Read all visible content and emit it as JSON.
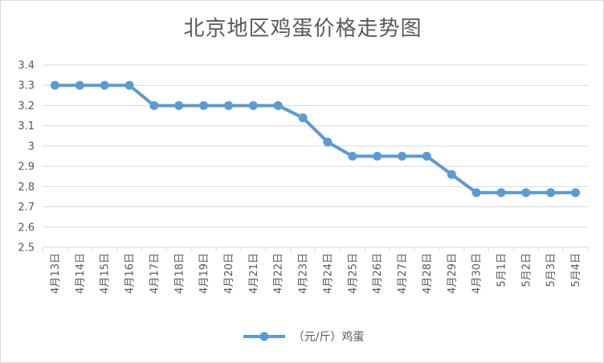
{
  "chart_data": {
    "type": "line",
    "title": "北京地区鸡蛋价格走势图",
    "xlabel": "",
    "ylabel": "",
    "categories": [
      "4月13日",
      "4月14日",
      "4月15日",
      "4月16日",
      "4月17日",
      "4月18日",
      "4月19日",
      "4月20日",
      "4月21日",
      "4月22日",
      "4月23日",
      "4月24日",
      "4月25日",
      "4月26日",
      "4月27日",
      "4月28日",
      "4月29日",
      "4月30日",
      "5月1日",
      "5月2日",
      "5月3日",
      "5月4日"
    ],
    "series": [
      {
        "name": "（元/斤）鸡蛋",
        "values": [
          3.3,
          3.3,
          3.3,
          3.3,
          3.2,
          3.2,
          3.2,
          3.2,
          3.2,
          3.2,
          3.14,
          3.02,
          2.95,
          2.95,
          2.95,
          2.95,
          2.86,
          2.77,
          2.77,
          2.77,
          2.77,
          2.77
        ]
      }
    ],
    "ylim": [
      2.5,
      3.4
    ],
    "yticks": [
      "2.5",
      "2.6",
      "2.7",
      "2.8",
      "2.9",
      "3",
      "3.1",
      "3.2",
      "3.3",
      "3.4"
    ],
    "grid": true,
    "legend": "bottom",
    "color": "#5b9bd5",
    "gridColor": "#d9d9d9"
  }
}
